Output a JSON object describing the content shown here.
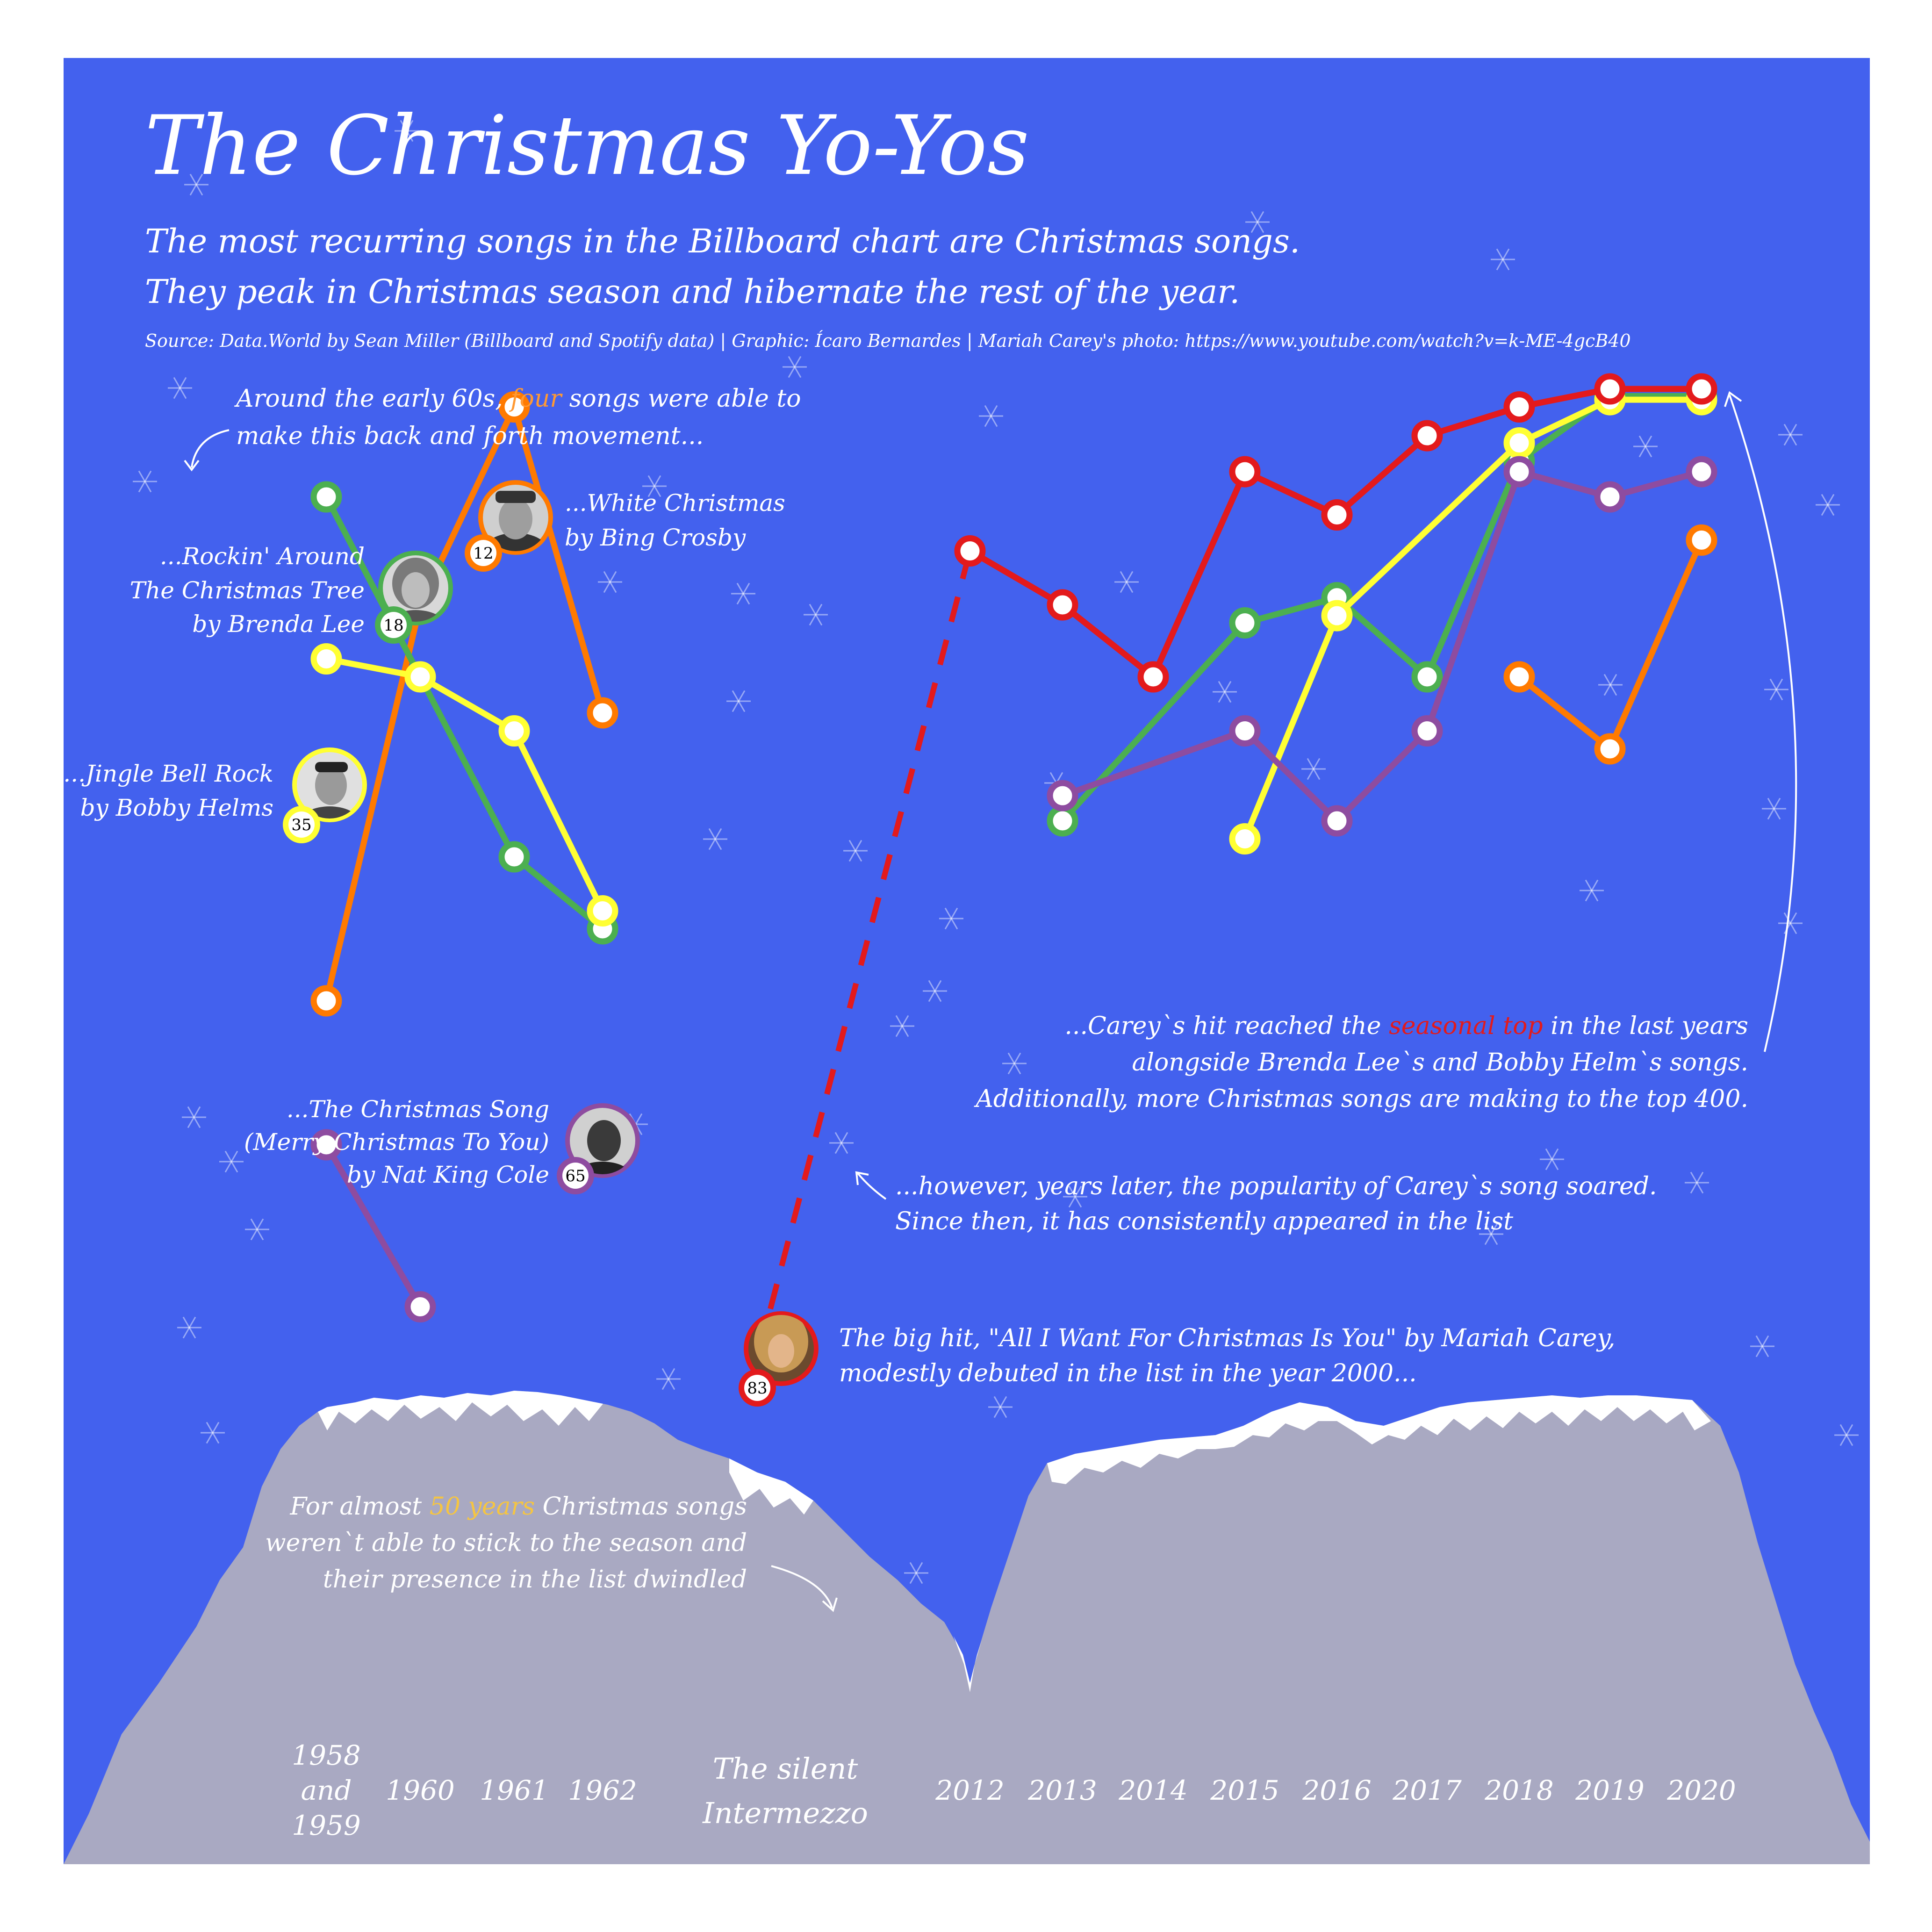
{
  "header": {
    "title": "The Christmas Yo-Yos",
    "subtitle_line1": "The most recurring songs in the Billboard chart are Christmas songs.",
    "subtitle_line2": "They peak in Christmas season and hibernate the rest of the year.",
    "source": "Source: Data.World by Sean Miller (Billboard and Spotify data) | Graphic: Ícaro Bernardes | Mariah Carey's photo: https://www.youtube.com/watch?v=k-ME-4gcB40"
  },
  "colors": {
    "background": "#4361EE",
    "mountain": "#A9A9C2",
    "snow": "#FFFFFF",
    "white_christmas": "#FF7A00",
    "rockin_around": "#4CAF50",
    "jingle_bell_rock": "#FFFF33",
    "christmas_song": "#8E4CA0",
    "all_i_want": "#E31A1C",
    "highlight_orange": "#FF9933",
    "highlight_gold": "#F5C542",
    "highlight_red": "#E31A1C"
  },
  "annotations": {
    "early60s_a": "Around the early 60s, ",
    "early60s_highlight": "four",
    "early60s_b": " songs were able to",
    "early60s_line2": "make this back and forth movement...",
    "white_christmas_1": "...White Christmas",
    "white_christmas_2": "by Bing Crosby",
    "rockin_1": "...Rockin' Around",
    "rockin_2": "The Christmas Tree",
    "rockin_3": "by Brenda Lee",
    "jingle_1": "...Jingle Bell Rock",
    "jingle_2": "by Bobby Helms",
    "xmas_song_1": "...The Christmas Song",
    "xmas_song_2": "(Merry Christmas To You)",
    "xmas_song_3": "by Nat King Cole",
    "carey_top_a": "...Carey`s hit reached the ",
    "carey_top_highlight": "seasonal top",
    "carey_top_b": " in the last years",
    "carey_top_2": "alongside Brenda Lee`s and Bobby Helm`s songs.",
    "carey_top_3": "Additionally, more Christmas songs are making to the top 400.",
    "soared_1": "...however, years later, the popularity of Carey`s song soared.",
    "soared_2": "Since then, it has consistently appeared in the list",
    "bighit_1": "The big hit, \"All I Want For Christmas Is You\" by Mariah Carey,",
    "bighit_2": "modestly debuted in the list in the year 2000...",
    "fifty_a": "For almost ",
    "fifty_highlight": "50 years",
    "fifty_b": " Christmas songs",
    "fifty_2": "weren`t able to stick to the season and",
    "fifty_3": "their presence in the list dwindled",
    "intermezzo_1": "The silent",
    "intermezzo_2": "Intermezzo"
  },
  "badges": {
    "white_christmas": "12",
    "rockin_around": "18",
    "jingle_bell_rock": "35",
    "christmas_song": "65",
    "all_i_want": "83"
  },
  "chart_data": {
    "type": "line",
    "note": "Positions in the seasonal (Christmas) ranking; higher on the chart = better rank. Values estimated from marker heights in 'rank units' (1 = top).",
    "x_labels": [
      "1958\nand\n1959",
      "1960",
      "1961",
      "1962",
      "2012",
      "2013",
      "2014",
      "2015",
      "2016",
      "2017",
      "2018",
      "2019",
      "2020"
    ],
    "series": [
      {
        "name": "White Christmas (Bing Crosby)",
        "color": "#FF7A00",
        "early": [
          {
            "x": "1958 and 1959",
            "y": 18.0
          },
          {
            "x": "1960",
            "y": 7.0
          },
          {
            "x": "1961",
            "y": 1.5
          },
          {
            "x": "1962",
            "y": 10.0
          }
        ],
        "late": [
          {
            "x": "2018",
            "y": 9.0
          },
          {
            "x": "2019",
            "y": 11.0
          },
          {
            "x": "2020",
            "y": 5.2
          }
        ]
      },
      {
        "name": "Rockin' Around The Christmas Tree (Brenda Lee)",
        "color": "#4CAF50",
        "early": [
          {
            "x": "1958 and 1959",
            "y": 4.0
          },
          {
            "x": "1961",
            "y": 14.0
          },
          {
            "x": "1962",
            "y": 16.0
          }
        ],
        "late": [
          {
            "x": "2013",
            "y": 13.0
          },
          {
            "x": "2015",
            "y": 7.5
          },
          {
            "x": "2016",
            "y": 6.8
          },
          {
            "x": "2017",
            "y": 9.0
          },
          {
            "x": "2018",
            "y": 3.0
          },
          {
            "x": "2019",
            "y": 1.2
          },
          {
            "x": "2020",
            "y": 1.2
          }
        ]
      },
      {
        "name": "Jingle Bell Rock (Bobby Helms)",
        "color": "#FFFF33",
        "early": [
          {
            "x": "1958 and 1959",
            "y": 8.5
          },
          {
            "x": "1960",
            "y": 9.0
          },
          {
            "x": "1961",
            "y": 10.5
          },
          {
            "x": "1962",
            "y": 15.5
          }
        ],
        "late": [
          {
            "x": "2015",
            "y": 13.5
          },
          {
            "x": "2016",
            "y": 7.3
          },
          {
            "x": "2018",
            "y": 2.5
          },
          {
            "x": "2019",
            "y": 1.3
          },
          {
            "x": "2020",
            "y": 1.3
          }
        ]
      },
      {
        "name": "The Christmas Song (Nat King Cole)",
        "color": "#8E4CA0",
        "early": [
          {
            "x": "1958 and 1959",
            "y": 22.0
          },
          {
            "x": "1960",
            "y": 26.5
          }
        ],
        "late": [
          {
            "x": "2013",
            "y": 12.3
          },
          {
            "x": "2015",
            "y": 10.5
          },
          {
            "x": "2016",
            "y": 13.0
          },
          {
            "x": "2017",
            "y": 10.5
          },
          {
            "x": "2018",
            "y": 3.3
          },
          {
            "x": "2019",
            "y": 4.0
          },
          {
            "x": "2020",
            "y": 3.3
          }
        ]
      },
      {
        "name": "All I Want For Christmas Is You (Mariah Carey)",
        "color": "#E31A1C",
        "debut": {
          "x": "2000",
          "y": 29.0
        },
        "late": [
          {
            "x": "2012",
            "y": 5.5
          },
          {
            "x": "2013",
            "y": 7.0
          },
          {
            "x": "2014",
            "y": 9.0
          },
          {
            "x": "2015",
            "y": 3.3
          },
          {
            "x": "2016",
            "y": 4.5
          },
          {
            "x": "2017",
            "y": 2.3
          },
          {
            "x": "2018",
            "y": 1.5
          },
          {
            "x": "2019",
            "y": 1.0
          },
          {
            "x": "2020",
            "y": 1.0
          }
        ]
      }
    ]
  }
}
